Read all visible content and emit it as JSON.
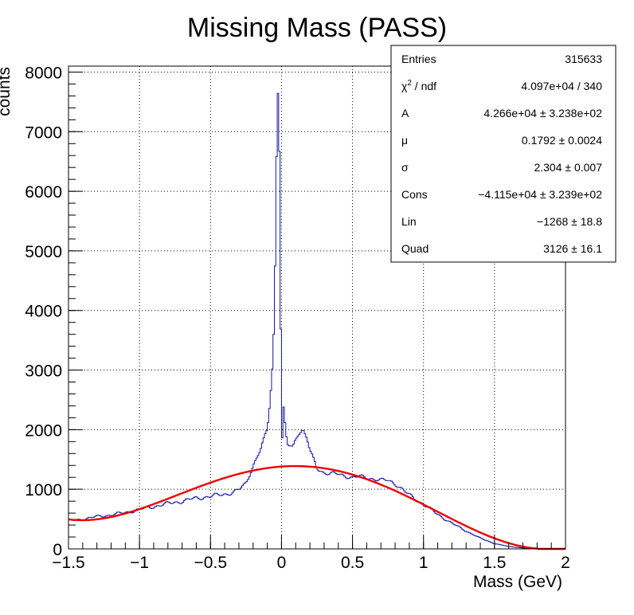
{
  "chart_data": {
    "type": "histogram",
    "title": "Missing Mass (PASS)",
    "xlabel": "Mass (GeV)",
    "ylabel": "counts",
    "xlim": [
      -1.5,
      2.0
    ],
    "ylim": [
      0,
      8100
    ],
    "x_ticks": [
      -1.5,
      -1,
      -0.5,
      0,
      0.5,
      1,
      1.5,
      2
    ],
    "x_tick_labels": [
      "−1.5",
      "−1",
      "−0.5",
      "0",
      "0.5",
      "1",
      "1.5",
      "2"
    ],
    "y_ticks": [
      0,
      1000,
      2000,
      3000,
      4000,
      5000,
      6000,
      7000,
      8000
    ],
    "y_tick_labels": [
      "0",
      "1000",
      "2000",
      "3000",
      "4000",
      "5000",
      "6000",
      "7000",
      "8000"
    ],
    "grid": true,
    "series": [
      {
        "kind": "histogram",
        "color": "#1616a0",
        "points": [
          [
            -1.5,
            470
          ],
          [
            -1.4,
            500
          ],
          [
            -1.3,
            540
          ],
          [
            -1.2,
            570
          ],
          [
            -1.1,
            610
          ],
          [
            -1.0,
            660
          ],
          [
            -0.9,
            710
          ],
          [
            -0.8,
            760
          ],
          [
            -0.7,
            800
          ],
          [
            -0.6,
            850
          ],
          [
            -0.5,
            880
          ],
          [
            -0.45,
            900
          ],
          [
            -0.4,
            920
          ],
          [
            -0.35,
            940
          ],
          [
            -0.3,
            990
          ],
          [
            -0.25,
            1100
          ],
          [
            -0.2,
            1400
          ],
          [
            -0.15,
            1650
          ],
          [
            -0.1,
            2000
          ],
          [
            -0.08,
            2500
          ],
          [
            -0.06,
            3200
          ],
          [
            -0.05,
            4000
          ],
          [
            -0.04,
            5500
          ],
          [
            -0.03,
            7700
          ],
          [
            -0.02,
            7650
          ],
          [
            -0.015,
            6700
          ],
          [
            -0.01,
            5500
          ],
          [
            -0.005,
            3700
          ],
          [
            0.0,
            1200
          ],
          [
            0.01,
            2500
          ],
          [
            0.02,
            2200
          ],
          [
            0.04,
            1750
          ],
          [
            0.08,
            1700
          ],
          [
            0.1,
            1850
          ],
          [
            0.12,
            1950
          ],
          [
            0.15,
            2000
          ],
          [
            0.18,
            1850
          ],
          [
            0.2,
            1650
          ],
          [
            0.25,
            1350
          ],
          [
            0.3,
            1280
          ],
          [
            0.4,
            1250
          ],
          [
            0.5,
            1200
          ],
          [
            0.55,
            1210
          ],
          [
            0.6,
            1200
          ],
          [
            0.7,
            1150
          ],
          [
            0.75,
            1150
          ],
          [
            0.8,
            1100
          ],
          [
            0.85,
            1000
          ],
          [
            0.9,
            900
          ],
          [
            1.0,
            750
          ],
          [
            1.1,
            580
          ],
          [
            1.2,
            430
          ],
          [
            1.3,
            300
          ],
          [
            1.4,
            180
          ],
          [
            1.5,
            90
          ],
          [
            1.6,
            40
          ],
          [
            1.7,
            15
          ],
          [
            1.8,
            5
          ],
          [
            1.9,
            0
          ],
          [
            2.0,
            0
          ]
        ]
      },
      {
        "kind": "fit",
        "color": "#ee0000",
        "fit": {
          "A": 42660,
          "mu": 0.1792,
          "sigma": 2.304,
          "Cons": -41150,
          "Lin": -1268,
          "Quad": 3126
        }
      }
    ],
    "stats_box": {
      "position": "top-right",
      "rows": [
        {
          "label": "Entries",
          "value": "315633"
        },
        {
          "label": "χ",
          "label_sup": "2",
          "label_rest": " / ndf",
          "value": "4.097e+04 / 340"
        },
        {
          "label": "A",
          "value": "4.266e+04  ± 3.238e+02"
        },
        {
          "label": "μ",
          "value": "0.1792 ± 0.0024"
        },
        {
          "label": "σ",
          "value": "2.304 ± 0.007"
        },
        {
          "label": "Cons",
          "value": "−4.115e+04  ± 3.239e+02"
        },
        {
          "label": "Lin",
          "value": "−1268 ± 18.8"
        },
        {
          "label": "Quad",
          "value": "3126 ± 16.1"
        }
      ]
    }
  }
}
